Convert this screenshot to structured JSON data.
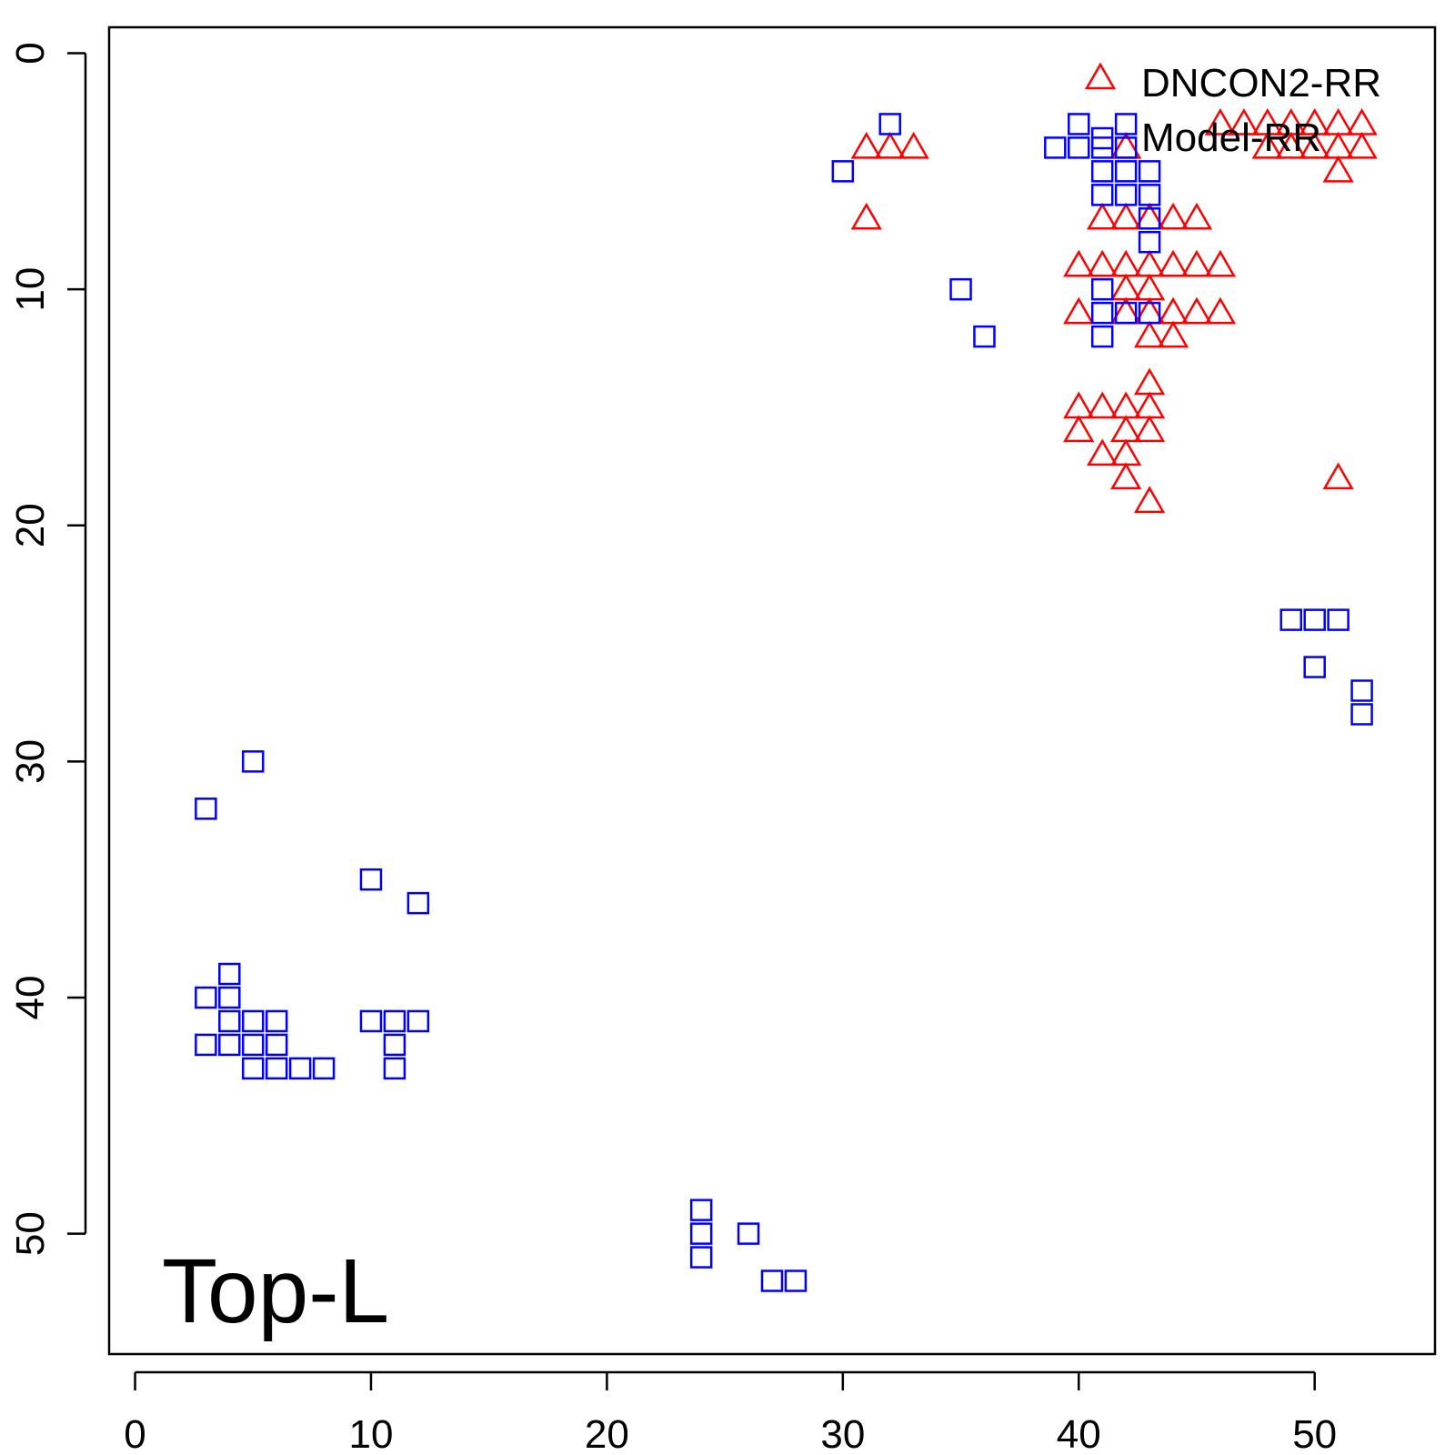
{
  "chart_data": {
    "type": "scatter",
    "title": "",
    "xlabel": "",
    "ylabel": "",
    "xlim": [
      -1.1,
      55.1
    ],
    "ylim": [
      55.1,
      -1.1
    ],
    "y_reversed": true,
    "x_ticks": [
      "0",
      "10",
      "20",
      "30",
      "40",
      "50"
    ],
    "y_ticks": [
      "0",
      "10",
      "20",
      "30",
      "40",
      "50"
    ],
    "annotation": "Top-L",
    "legend_position": "top-right",
    "grid": false,
    "series": [
      {
        "name": "DNCON2-RR",
        "marker": "triangle",
        "color": "#ff0000",
        "points": [
          [
            31,
            4
          ],
          [
            32,
            4
          ],
          [
            33,
            4
          ],
          [
            31,
            7
          ],
          [
            42,
            4
          ],
          [
            41,
            7
          ],
          [
            42,
            7
          ],
          [
            43,
            7
          ],
          [
            44,
            7
          ],
          [
            45,
            7
          ],
          [
            40,
            9
          ],
          [
            41,
            9
          ],
          [
            42,
            9
          ],
          [
            43,
            9
          ],
          [
            44,
            9
          ],
          [
            45,
            9
          ],
          [
            46,
            9
          ],
          [
            42,
            10
          ],
          [
            43,
            10
          ],
          [
            40,
            11
          ],
          [
            42,
            11
          ],
          [
            43,
            11
          ],
          [
            44,
            11
          ],
          [
            45,
            11
          ],
          [
            46,
            11
          ],
          [
            43,
            12
          ],
          [
            44,
            12
          ],
          [
            43,
            14
          ],
          [
            40,
            15
          ],
          [
            41,
            15
          ],
          [
            42,
            15
          ],
          [
            43,
            15
          ],
          [
            40,
            16
          ],
          [
            42,
            16
          ],
          [
            43,
            16
          ],
          [
            41,
            17
          ],
          [
            42,
            17
          ],
          [
            42,
            18
          ],
          [
            43,
            19
          ],
          [
            46,
            3
          ],
          [
            47,
            3
          ],
          [
            48,
            3
          ],
          [
            49,
            3
          ],
          [
            50,
            3
          ],
          [
            51,
            3
          ],
          [
            52,
            3
          ],
          [
            48,
            4
          ],
          [
            49,
            4
          ],
          [
            50,
            4
          ],
          [
            51,
            4
          ],
          [
            52,
            4
          ],
          [
            51,
            5
          ],
          [
            51,
            18
          ]
        ]
      },
      {
        "name": "Model-RR",
        "marker": "square",
        "color": "#0000ff",
        "points": [
          [
            32,
            3
          ],
          [
            30,
            5
          ],
          [
            35,
            10
          ],
          [
            36,
            12
          ],
          [
            40,
            3
          ],
          [
            42,
            3
          ],
          [
            39,
            4
          ],
          [
            40,
            4
          ],
          [
            41,
            3.6
          ],
          [
            41,
            4
          ],
          [
            42,
            4
          ],
          [
            41,
            5
          ],
          [
            42,
            5
          ],
          [
            43,
            5
          ],
          [
            41,
            6
          ],
          [
            42,
            6
          ],
          [
            43,
            6
          ],
          [
            43,
            7
          ],
          [
            43,
            8
          ],
          [
            41,
            10
          ],
          [
            41,
            11
          ],
          [
            42,
            11
          ],
          [
            43,
            11
          ],
          [
            41,
            12
          ],
          [
            49,
            24
          ],
          [
            50,
            24
          ],
          [
            51,
            24
          ],
          [
            50,
            26
          ],
          [
            52,
            27
          ],
          [
            52,
            28
          ],
          [
            5,
            30
          ],
          [
            3,
            32
          ],
          [
            10,
            35
          ],
          [
            12,
            36
          ],
          [
            4,
            39
          ],
          [
            3,
            40
          ],
          [
            4,
            40
          ],
          [
            4,
            41
          ],
          [
            5,
            41
          ],
          [
            6,
            41
          ],
          [
            10,
            41
          ],
          [
            11,
            41
          ],
          [
            12,
            41
          ],
          [
            3,
            42
          ],
          [
            4,
            42
          ],
          [
            5,
            42
          ],
          [
            6,
            42
          ],
          [
            11,
            42
          ],
          [
            5,
            43
          ],
          [
            6,
            43
          ],
          [
            7,
            43
          ],
          [
            8,
            43
          ],
          [
            11,
            43
          ],
          [
            24,
            49
          ],
          [
            24,
            50
          ],
          [
            26,
            50
          ],
          [
            24,
            51
          ],
          [
            27,
            52
          ],
          [
            28,
            52
          ]
        ]
      }
    ]
  }
}
